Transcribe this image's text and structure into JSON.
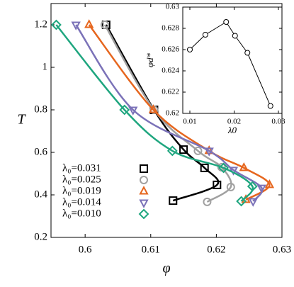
{
  "chart_data": [
    {
      "type": "line",
      "xlabel": "φ",
      "ylabel": "T",
      "xlim": [
        0.5948,
        0.63
      ],
      "ylim": [
        0.2,
        1.3
      ],
      "xticks": [
        0.6,
        0.61,
        0.62,
        0.63
      ],
      "yticks": [
        0.2,
        0.4,
        0.6,
        0.8,
        1,
        1.2
      ],
      "legend": "lower left",
      "series": [
        {
          "name": "λ₀=0.031",
          "color": "#000000",
          "marker": "square",
          "x": [
            0.6032,
            0.6105,
            0.615,
            0.6182,
            0.6201,
            0.6134
          ],
          "values": [
            1.2,
            0.8,
            0.613,
            0.527,
            0.447,
            0.373
          ]
        },
        {
          "name": "λ₀=0.025",
          "color": "#a0a0a0",
          "marker": "circle",
          "x": [
            0.603,
            0.6105,
            0.6172,
            0.6208,
            0.6222,
            0.6186
          ],
          "values": [
            1.2,
            0.8,
            0.607,
            0.53,
            0.437,
            0.367
          ]
        },
        {
          "name": "λ₀=0.019",
          "color": "#e6661e",
          "marker": "triangle",
          "x": [
            0.6006,
            0.6104,
            0.6189,
            0.6242,
            0.6281,
            0.6245
          ],
          "values": [
            1.2,
            0.8,
            0.607,
            0.527,
            0.447,
            0.377
          ]
        },
        {
          "name": "λ₀=0.014",
          "color": "#7b72b8",
          "marker": "triangle-down",
          "x": [
            0.5986,
            0.6073,
            0.6189,
            0.6226,
            0.6269,
            0.6256
          ],
          "values": [
            1.2,
            0.8,
            0.607,
            0.517,
            0.433,
            0.37
          ]
        },
        {
          "name": "λ₀=0.010",
          "color": "#1fa67f",
          "marker": "diamond",
          "x": [
            0.5956,
            0.606,
            0.6133,
            0.6211,
            0.6255,
            0.6238
          ],
          "values": [
            1.2,
            0.8,
            0.607,
            0.527,
            0.44,
            0.37
          ]
        }
      ]
    },
    {
      "type": "line",
      "xlabel": "λ0",
      "ylabel": "φd*",
      "xlim": [
        0.0084,
        0.0308
      ],
      "ylim": [
        0.62,
        0.63
      ],
      "xticks": [
        0.01,
        0.02,
        0.03
      ],
      "yticks": [
        0.62,
        0.622,
        0.624,
        0.626,
        0.628,
        0.63
      ],
      "series": [
        {
          "color": "#000000",
          "marker": "circle",
          "x": [
            0.01,
            0.0135,
            0.0182,
            0.0202,
            0.023,
            0.0282
          ],
          "values": [
            0.626,
            0.6274,
            0.6286,
            0.6273,
            0.6257,
            0.6207
          ]
        }
      ]
    }
  ]
}
